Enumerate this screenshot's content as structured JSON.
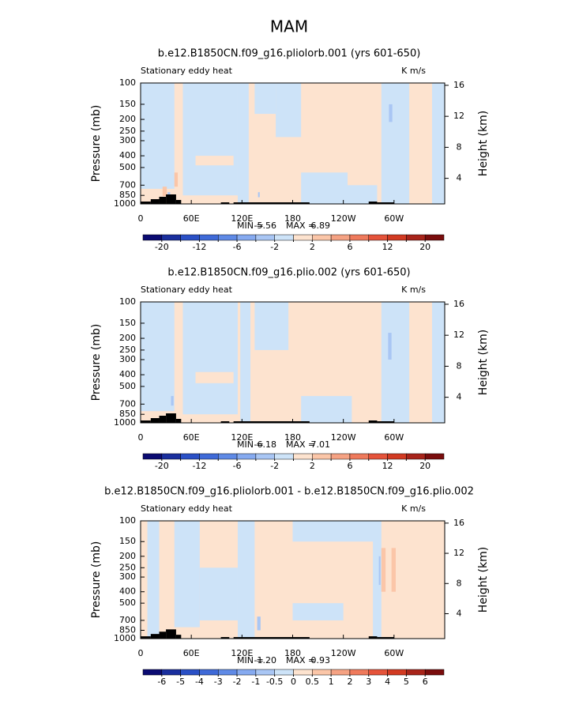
{
  "title": "MAM",
  "chart_data": [
    {
      "type": "contour",
      "title": "b.e12.B1850CN.f09_g16.pliolorb.001 (yrs 601-650)",
      "subtitle_left": "Stationary eddy heat",
      "subtitle_right": "K m/s",
      "ylabel": "Pressure (mb)",
      "y2label": "Height (km)",
      "xlim": [
        0,
        360
      ],
      "xticks": [
        0,
        {
          "value": 60,
          "label": "60E"
        },
        {
          "value": 120,
          "label": "120E"
        },
        180,
        {
          "value": 240,
          "label": "120W"
        },
        {
          "value": 300,
          "label": "60W"
        }
      ],
      "ylim": [
        1000,
        100
      ],
      "log_y": true,
      "yticks": [
        100,
        150,
        200,
        250,
        300,
        400,
        500,
        700,
        850,
        1000
      ],
      "y2lim": [
        0.7,
        16.3
      ],
      "y2ticks": [
        4,
        8,
        12,
        16
      ],
      "background": 1,
      "regions": [
        {
          "lon": [
            0,
            40
          ],
          "p": [
            100,
            750
          ],
          "value": -1
        },
        {
          "lon": [
            50,
            115
          ],
          "p": [
            100,
            850
          ],
          "value": -1
        },
        {
          "lon": [
            65,
            110
          ],
          "p": [
            400,
            480
          ],
          "value": 1
        },
        {
          "lon": [
            115,
            128
          ],
          "p": [
            100,
            1000
          ],
          "value": -1
        },
        {
          "lon": [
            135,
            160
          ],
          "p": [
            100,
            180
          ],
          "value": -1
        },
        {
          "lon": [
            160,
            190
          ],
          "p": [
            100,
            280
          ],
          "value": -1
        },
        {
          "lon": [
            190,
            245
          ],
          "p": [
            550,
            1000
          ],
          "value": -1
        },
        {
          "lon": [
            245,
            280
          ],
          "p": [
            700,
            1000
          ],
          "value": -1
        },
        {
          "lon": [
            285,
            318
          ],
          "p": [
            100,
            1000
          ],
          "value": -1
        },
        {
          "lon": [
            345,
            360
          ],
          "p": [
            100,
            1000
          ],
          "value": -1
        },
        {
          "lon": [
            294,
            298
          ],
          "p": [
            150,
            210
          ],
          "value": -3
        },
        {
          "lon": [
            26,
            31
          ],
          "p": [
            720,
            860
          ],
          "value": 3
        },
        {
          "lon": [
            40,
            44
          ],
          "p": [
            550,
            720
          ],
          "value": 3
        },
        {
          "lon": [
            32,
            35
          ],
          "p": [
            800,
            900
          ],
          "value": -3
        },
        {
          "lon": [
            139,
            141
          ],
          "p": [
            800,
            880
          ],
          "value": -3
        }
      ],
      "min_label": "MIN =",
      "min": -5.56,
      "max_label": "MAX =",
      "max": 6.89,
      "colorbar": {
        "levels": [
          -20,
          -16,
          -12,
          -8,
          -6,
          -4,
          -2,
          0,
          2,
          4,
          6,
          8,
          12,
          16,
          20
        ],
        "labels": [
          -20,
          null,
          -12,
          null,
          -6,
          null,
          -2,
          null,
          2,
          null,
          6,
          null,
          12,
          null,
          20
        ],
        "colors": [
          "#0b0b72",
          "#1a2f9e",
          "#2a50c6",
          "#3f6ad8",
          "#5f8ae6",
          "#86aaf0",
          "#a9c6f4",
          "#cde3f8",
          "#fde3cf",
          "#fbc6a8",
          "#f5a283",
          "#ef7a5c",
          "#e5533a",
          "#d23a22",
          "#a8241a",
          "#7a0d0d"
        ]
      }
    },
    {
      "type": "contour",
      "title": "b.e12.B1850CN.f09_g16.plio.002 (yrs 601-650)",
      "subtitle_left": "Stationary eddy heat",
      "subtitle_right": "K m/s",
      "ylabel": "Pressure (mb)",
      "y2label": "Height (km)",
      "xlim": [
        0,
        360
      ],
      "xticks": [
        0,
        {
          "value": 60,
          "label": "60E"
        },
        {
          "value": 120,
          "label": "120E"
        },
        180,
        {
          "value": 240,
          "label": "120W"
        },
        {
          "value": 300,
          "label": "60W"
        }
      ],
      "ylim": [
        1000,
        100
      ],
      "log_y": true,
      "yticks": [
        100,
        150,
        200,
        250,
        300,
        400,
        500,
        700,
        850,
        1000
      ],
      "y2lim": [
        0.7,
        16.3
      ],
      "y2ticks": [
        4,
        8,
        12,
        16
      ],
      "background": 1,
      "regions": [
        {
          "lon": [
            0,
            40
          ],
          "p": [
            100,
            800
          ],
          "value": -1
        },
        {
          "lon": [
            50,
            115
          ],
          "p": [
            100,
            850
          ],
          "value": -1
        },
        {
          "lon": [
            65,
            110
          ],
          "p": [
            380,
            470
          ],
          "value": 1
        },
        {
          "lon": [
            118,
            130
          ],
          "p": [
            100,
            1000
          ],
          "value": -1
        },
        {
          "lon": [
            135,
            175
          ],
          "p": [
            100,
            250
          ],
          "value": -1
        },
        {
          "lon": [
            190,
            250
          ],
          "p": [
            600,
            1000
          ],
          "value": -1
        },
        {
          "lon": [
            285,
            318
          ],
          "p": [
            100,
            1000
          ],
          "value": -1
        },
        {
          "lon": [
            345,
            360
          ],
          "p": [
            100,
            1000
          ],
          "value": -1
        },
        {
          "lon": [
            293,
            297
          ],
          "p": [
            180,
            300
          ],
          "value": -3
        },
        {
          "lon": [
            36,
            39
          ],
          "p": [
            600,
            720
          ],
          "value": -3
        }
      ],
      "min_label": "MIN =",
      "min": -6.18,
      "max_label": "MAX =",
      "max": 7.01,
      "colorbar": {
        "levels": [
          -20,
          -16,
          -12,
          -8,
          -6,
          -4,
          -2,
          0,
          2,
          4,
          6,
          8,
          12,
          16,
          20
        ],
        "labels": [
          -20,
          null,
          -12,
          null,
          -6,
          null,
          -2,
          null,
          2,
          null,
          6,
          null,
          12,
          null,
          20
        ],
        "colors": [
          "#0b0b72",
          "#1a2f9e",
          "#2a50c6",
          "#3f6ad8",
          "#5f8ae6",
          "#86aaf0",
          "#a9c6f4",
          "#cde3f8",
          "#fde3cf",
          "#fbc6a8",
          "#f5a283",
          "#ef7a5c",
          "#e5533a",
          "#d23a22",
          "#a8241a",
          "#7a0d0d"
        ]
      }
    },
    {
      "type": "contour",
      "title": "b.e12.B1850CN.f09_g16.pliolorb.001 - b.e12.B1850CN.f09_g16.plio.002",
      "subtitle_left": "Stationary eddy heat",
      "subtitle_right": "K m/s",
      "ylabel": "Pressure (mb)",
      "y2label": "Height (km)",
      "xlim": [
        0,
        360
      ],
      "xticks": [
        0,
        {
          "value": 60,
          "label": "60E"
        },
        {
          "value": 120,
          "label": "120E"
        },
        180,
        {
          "value": 240,
          "label": "120W"
        },
        {
          "value": 300,
          "label": "60W"
        }
      ],
      "ylim": [
        1000,
        100
      ],
      "log_y": true,
      "yticks": [
        100,
        150,
        200,
        250,
        300,
        400,
        500,
        700,
        850,
        1000
      ],
      "y2lim": [
        0.7,
        16.3
      ],
      "y2ticks": [
        4,
        8,
        12,
        16
      ],
      "background": 0.25,
      "regions": [
        {
          "lon": [
            8,
            22
          ],
          "p": [
            100,
            1000
          ],
          "value": -0.25
        },
        {
          "lon": [
            40,
            70
          ],
          "p": [
            100,
            800
          ],
          "value": -0.25
        },
        {
          "lon": [
            70,
            115
          ],
          "p": [
            250,
            700
          ],
          "value": -0.25
        },
        {
          "lon": [
            115,
            135
          ],
          "p": [
            100,
            1000
          ],
          "value": -0.25
        },
        {
          "lon": [
            180,
            280
          ],
          "p": [
            100,
            150
          ],
          "value": -0.25
        },
        {
          "lon": [
            180,
            240
          ],
          "p": [
            500,
            700
          ],
          "value": -0.25
        },
        {
          "lon": [
            275,
            285
          ],
          "p": [
            100,
            1000
          ],
          "value": -0.25
        },
        {
          "lon": [
            138,
            142
          ],
          "p": [
            650,
            850
          ],
          "value": -0.75
        },
        {
          "lon": [
            285,
            290
          ],
          "p": [
            170,
            400
          ],
          "value": 0.75
        },
        {
          "lon": [
            297,
            302
          ],
          "p": [
            170,
            400
          ],
          "value": 0.75
        },
        {
          "lon": [
            282,
            284
          ],
          "p": [
            200,
            350
          ],
          "value": -0.75
        }
      ],
      "min_label": "MIN =",
      "min": {
        "value": -1.2,
        "label": "-1.20"
      },
      "max_label": "MAX =",
      "max": 0.93,
      "colorbar": {
        "levels": [
          -6,
          -5,
          -4,
          -3,
          -2,
          -1,
          -0.5,
          0,
          0.5,
          1,
          2,
          3,
          4,
          5,
          6
        ],
        "labels": [
          -6,
          -5,
          -4,
          -3,
          -2,
          -1,
          -0.5,
          0,
          0.5,
          1,
          2,
          3,
          4,
          5,
          6
        ],
        "colors": [
          "#0b0b72",
          "#1a2f9e",
          "#2a50c6",
          "#3f6ad8",
          "#5f8ae6",
          "#86aaf0",
          "#a9c6f4",
          "#cde3f8",
          "#fde3cf",
          "#fbc6a8",
          "#f5a283",
          "#ef7a5c",
          "#e5533a",
          "#d23a22",
          "#a8241a",
          "#7a0d0d"
        ]
      }
    }
  ]
}
